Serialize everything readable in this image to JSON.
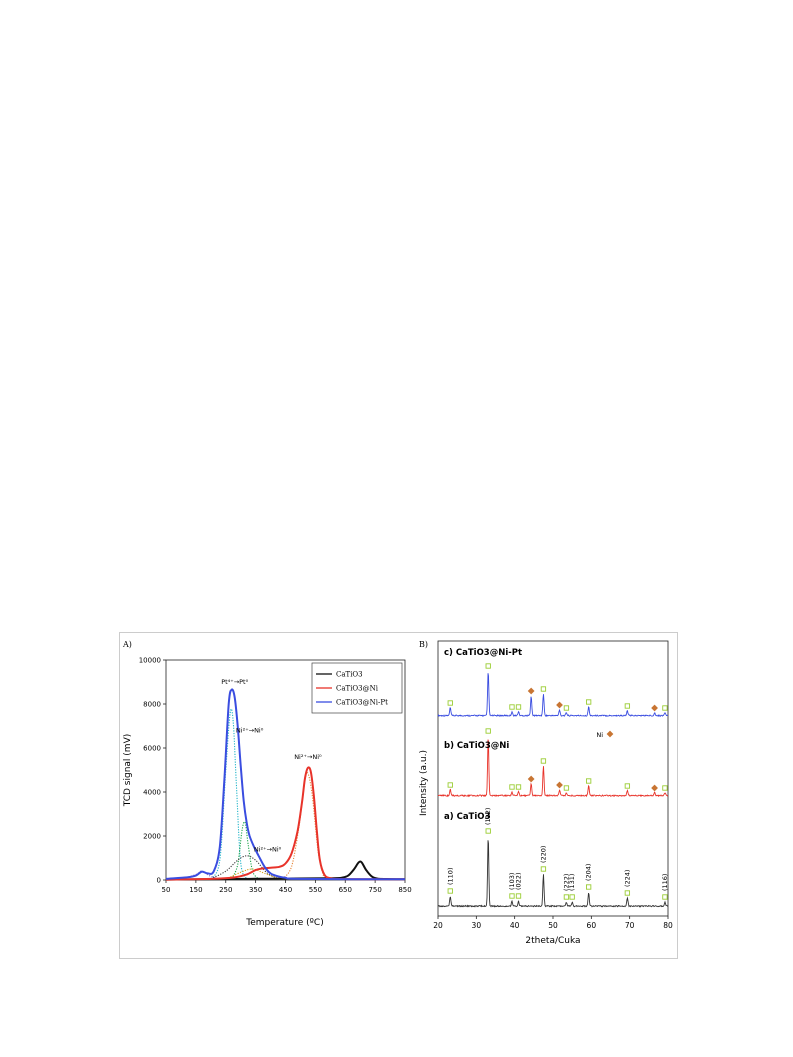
{
  "chart_data": [
    {
      "panel": "A)",
      "type": "line",
      "xlabel": "Temperature (ºC)",
      "ylabel": "TCD signal (mV)",
      "xlim": [
        50,
        850
      ],
      "ylim": [
        0,
        10000
      ],
      "xticks": [
        "50",
        "150",
        "250",
        "350",
        "450",
        "550",
        "650",
        "750",
        "850"
      ],
      "yticks": [
        "0",
        "2000",
        "4000",
        "6000",
        "8000",
        "10000"
      ],
      "legend_position": "top-right",
      "series": [
        {
          "name": "CaTiO3",
          "color": "#111111",
          "x": [
            50,
            200,
            400,
            600,
            640,
            660,
            680,
            695,
            705,
            720,
            740,
            760,
            800,
            850
          ],
          "y": [
            20,
            40,
            60,
            80,
            110,
            200,
            500,
            800,
            800,
            450,
            150,
            60,
            40,
            30
          ]
        },
        {
          "name": "CaTiO3@Ni",
          "color": "#e8332a",
          "x": [
            50,
            200,
            280,
            320,
            350,
            370,
            400,
            430,
            450,
            470,
            490,
            505,
            515,
            525,
            535,
            545,
            555,
            565,
            580,
            600,
            650,
            850
          ],
          "y": [
            20,
            50,
            120,
            250,
            450,
            520,
            560,
            600,
            750,
            1200,
            2200,
            3500,
            4600,
            5100,
            4900,
            3800,
            2200,
            900,
            250,
            80,
            40,
            30
          ]
        },
        {
          "name": "CaTiO3@Ni-Pt",
          "color": "#3a4de0",
          "x": [
            50,
            120,
            150,
            170,
            190,
            210,
            230,
            245,
            260,
            270,
            280,
            290,
            300,
            310,
            320,
            330,
            345,
            360,
            380,
            400,
            430,
            450,
            500,
            850
          ],
          "y": [
            50,
            120,
            200,
            380,
            300,
            400,
            1500,
            4500,
            8000,
            8650,
            8300,
            7000,
            5200,
            3600,
            2600,
            2000,
            1500,
            1100,
            600,
            300,
            150,
            100,
            50,
            30
          ]
        }
      ],
      "deconvolution": [
        {
          "color": "#20b4c8",
          "x": [
            200,
            230,
            250,
            265,
            275,
            285,
            300,
            320
          ],
          "y": [
            50,
            900,
            5000,
            7600,
            7200,
            4500,
            800,
            50
          ]
        },
        {
          "color": "#1aa34a",
          "x": [
            270,
            290,
            305,
            315,
            325,
            340,
            360
          ],
          "y": [
            50,
            700,
            2300,
            2600,
            1600,
            400,
            50
          ]
        },
        {
          "color": "#3a3a3a",
          "x": [
            200,
            250,
            290,
            320,
            350,
            390,
            430
          ],
          "y": [
            50,
            400,
            900,
            1100,
            900,
            300,
            50
          ]
        },
        {
          "color": "#8a6cc4",
          "x": [
            100,
            150,
            170,
            195,
            230
          ],
          "y": [
            30,
            250,
            400,
            200,
            30
          ]
        },
        {
          "color": "#d6a31a",
          "x": [
            250,
            300,
            340,
            380,
            430
          ],
          "y": [
            30,
            350,
            500,
            300,
            30
          ]
        },
        {
          "color": "#e4863a",
          "x": [
            440,
            470,
            495,
            515,
            525,
            540,
            560,
            580
          ],
          "y": [
            50,
            600,
            2400,
            4500,
            4850,
            3800,
            1200,
            50
          ]
        }
      ],
      "annotations": [
        {
          "text": "Pt⁴⁺→Pt⁰",
          "x": 280,
          "y": 8900
        },
        {
          "text": "Ni²⁺→Ni⁰",
          "x": 330,
          "y": 6700
        },
        {
          "text": "Ni²⁺→Ni⁰",
          "x": 525,
          "y": 5500
        },
        {
          "text": "Ni²⁺→Ni⁰",
          "x": 390,
          "y": 1300
        }
      ]
    },
    {
      "panel": "B)",
      "type": "line",
      "xlabel": "2theta/Cuka",
      "ylabel": "Intensity (a.u.)",
      "xlim": [
        20,
        80
      ],
      "xticks": [
        "20",
        "30",
        "40",
        "50",
        "60",
        "70",
        "80"
      ],
      "series": [
        {
          "name": "c) CaTiO3@Ni-Pt",
          "color": "#3a4de0",
          "peaks": [
            [
              23.2,
              8
            ],
            [
              33.1,
              45
            ],
            [
              39.3,
              4
            ],
            [
              41.0,
              4
            ],
            [
              44.3,
              20
            ],
            [
              47.5,
              22
            ],
            [
              51.7,
              6
            ],
            [
              53.5,
              3
            ],
            [
              59.3,
              9
            ],
            [
              69.4,
              5
            ],
            [
              76.5,
              3
            ],
            [
              79.2,
              3
            ]
          ]
        },
        {
          "name": "b) CaTiO3@Ni",
          "color": "#e8332a",
          "peaks": [
            [
              23.2,
              6
            ],
            [
              33.1,
              60
            ],
            [
              39.3,
              4
            ],
            [
              41.0,
              4
            ],
            [
              44.3,
              12
            ],
            [
              47.5,
              30
            ],
            [
              51.7,
              6
            ],
            [
              53.5,
              3
            ],
            [
              59.3,
              10
            ],
            [
              69.4,
              5
            ],
            [
              76.5,
              3
            ],
            [
              79.2,
              3
            ]
          ]
        },
        {
          "name": "a) CaTiO3",
          "color": "#333333",
          "peaks": [
            [
              23.2,
              10
            ],
            [
              33.1,
              70
            ],
            [
              39.3,
              5
            ],
            [
              41.0,
              5
            ],
            [
              47.5,
              32
            ],
            [
              53.5,
              4
            ],
            [
              55.0,
              4
            ],
            [
              59.3,
              14
            ],
            [
              69.4,
              8
            ],
            [
              79.2,
              4
            ]
          ]
        }
      ],
      "hkl_labels": [
        {
          "x": 23.2,
          "text": "(110)"
        },
        {
          "x": 33.1,
          "text": "(112)"
        },
        {
          "x": 39.3,
          "text": "(103)"
        },
        {
          "x": 41.0,
          "text": "(022)"
        },
        {
          "x": 47.5,
          "text": "(220)"
        },
        {
          "x": 53.5,
          "text": "(222)"
        },
        {
          "x": 55.0,
          "text": "(131)"
        },
        {
          "x": 59.3,
          "text": "(204)"
        },
        {
          "x": 69.4,
          "text": "(224)"
        },
        {
          "x": 79.2,
          "text": "(116)"
        }
      ],
      "ni_label": "Ni",
      "marker_colors": {
        "perovskite": "#9acd32",
        "ni": "#c87533"
      }
    }
  ]
}
